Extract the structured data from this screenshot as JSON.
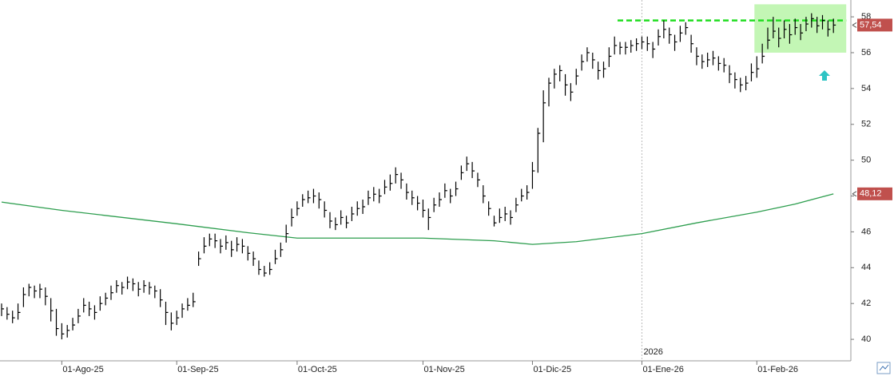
{
  "chart_data": {
    "type": "ohlc",
    "categories": [
      null,
      null,
      null,
      null,
      null,
      null,
      null,
      null,
      null,
      null,
      null,
      "01-Ago-25",
      null,
      null,
      null,
      null,
      null,
      null,
      null,
      null,
      null,
      null,
      null,
      null,
      null,
      null,
      null,
      null,
      null,
      null,
      null,
      null,
      "01-Sep-25",
      null,
      null,
      null,
      null,
      null,
      null,
      null,
      null,
      null,
      null,
      null,
      null,
      null,
      null,
      null,
      null,
      null,
      null,
      null,
      null,
      null,
      "01-Oct-25",
      null,
      null,
      null,
      null,
      null,
      null,
      null,
      null,
      null,
      null,
      null,
      null,
      null,
      null,
      null,
      null,
      null,
      null,
      null,
      null,
      null,
      null,
      "01-Nov-25",
      null,
      null,
      null,
      null,
      null,
      null,
      null,
      null,
      null,
      null,
      null,
      null,
      null,
      null,
      null,
      null,
      null,
      null,
      null,
      "01-Dic-25",
      null,
      null,
      null,
      null,
      null,
      null,
      null,
      null,
      null,
      null,
      null,
      null,
      null,
      null,
      null,
      null,
      null,
      null,
      null,
      "01-Ene-26",
      null,
      null,
      null,
      null,
      null,
      null,
      null,
      null,
      null,
      null,
      null,
      null,
      null,
      null,
      null,
      null,
      null,
      null,
      null,
      null,
      "01-Feb-26",
      null,
      null,
      null,
      null,
      null,
      null,
      null,
      null,
      null,
      null,
      null,
      null,
      null,
      null
    ],
    "price": {
      "color": "#000000",
      "last_label": "57,54",
      "label_color": "#c0504d",
      "high": [
        42.0,
        41.8,
        41.6,
        42.0,
        42.9,
        43.1,
        43.0,
        43.1,
        42.9,
        42.3,
        41.7,
        40.9,
        40.8,
        41.2,
        41.7,
        42.3,
        42.1,
        41.9,
        42.4,
        42.6,
        43.0,
        43.3,
        43.2,
        43.5,
        43.4,
        43.2,
        43.3,
        43.2,
        43.0,
        42.8,
        42.1,
        41.5,
        41.6,
        42.0,
        42.3,
        42.6,
        44.9,
        45.7,
        45.9,
        45.9,
        45.6,
        45.8,
        45.5,
        45.7,
        45.6,
        45.2,
        44.9,
        44.4,
        44.1,
        44.3,
        45.0,
        45.4,
        46.4,
        47.3,
        47.7,
        48.1,
        48.3,
        48.4,
        48.2,
        47.7,
        47.1,
        46.8,
        47.2,
        46.9,
        47.4,
        47.7,
        47.8,
        48.3,
        48.5,
        48.4,
        48.9,
        49.2,
        49.6,
        49.3,
        48.7,
        48.3,
        48.0,
        47.8,
        47.3,
        47.9,
        48.2,
        48.7,
        48.4,
        48.8,
        49.7,
        50.2,
        49.9,
        49.3,
        48.6,
        47.7,
        46.9,
        47.3,
        47.4,
        47.2,
        47.9,
        48.4,
        48.6,
        49.9,
        51.8,
        53.9,
        54.6,
        55.1,
        55.3,
        54.8,
        54.3,
        55.1,
        55.9,
        56.3,
        56.0,
        55.5,
        55.5,
        56.3,
        56.9,
        56.6,
        56.6,
        56.7,
        56.8,
        56.9,
        56.9,
        56.6,
        57.3,
        57.8,
        57.4,
        57.0,
        57.5,
        57.7,
        57.0,
        56.3,
        55.9,
        56.0,
        56.1,
        55.8,
        55.7,
        55.3,
        54.9,
        54.6,
        54.7,
        55.4,
        55.8,
        56.5,
        57.4,
        58.0,
        57.4,
        57.8,
        57.6,
        57.9,
        57.6,
        58.0,
        58.2,
        58.0,
        58.1,
        57.8,
        57.9
      ],
      "low": [
        41.3,
        41.1,
        40.9,
        41.1,
        41.8,
        42.4,
        42.3,
        42.3,
        41.9,
        41.0,
        40.2,
        40.0,
        40.1,
        40.5,
        40.9,
        41.5,
        41.3,
        41.1,
        41.6,
        41.9,
        42.2,
        42.6,
        42.5,
        42.8,
        42.7,
        42.4,
        42.6,
        42.5,
        42.3,
        41.8,
        40.8,
        40.5,
        40.8,
        41.2,
        41.6,
        41.8,
        44.1,
        44.8,
        45.2,
        45.1,
        44.8,
        45.0,
        44.6,
        44.9,
        44.8,
        44.4,
        44.1,
        43.6,
        43.5,
        43.6,
        44.2,
        44.6,
        45.4,
        46.3,
        46.9,
        47.4,
        47.6,
        47.6,
        47.3,
        46.8,
        46.2,
        46.1,
        46.4,
        46.2,
        46.6,
        46.9,
        47.0,
        47.5,
        47.7,
        47.6,
        48.1,
        48.3,
        48.7,
        48.4,
        47.8,
        47.5,
        47.2,
        46.8,
        46.1,
        47.1,
        47.4,
        47.9,
        47.6,
        48.0,
        48.9,
        49.4,
        49.0,
        48.5,
        47.6,
        46.9,
        46.3,
        46.5,
        46.6,
        46.4,
        47.1,
        47.7,
        47.8,
        48.4,
        49.3,
        51.0,
        53.0,
        54.0,
        54.4,
        53.6,
        53.3,
        54.2,
        55.0,
        55.5,
        55.1,
        54.5,
        54.6,
        55.2,
        55.9,
        55.9,
        55.9,
        56.0,
        56.1,
        56.2,
        56.1,
        55.7,
        56.4,
        56.8,
        56.5,
        56.1,
        56.6,
        57.0,
        56.0,
        55.3,
        55.1,
        55.2,
        55.3,
        55.0,
        54.9,
        54.3,
        54.0,
        53.8,
        53.9,
        54.4,
        54.6,
        55.4,
        56.2,
        56.8,
        56.3,
        56.8,
        56.5,
        57.0,
        56.7,
        57.2,
        57.4,
        57.1,
        57.3,
        56.9,
        57.1
      ],
      "close": [
        41.7,
        41.4,
        41.2,
        41.5,
        42.5,
        42.9,
        42.7,
        42.8,
        42.4,
        41.6,
        40.6,
        40.3,
        40.5,
        40.8,
        41.3,
        41.9,
        41.7,
        41.5,
        42.0,
        42.3,
        42.6,
        43.0,
        42.9,
        43.2,
        43.1,
        42.8,
        43.0,
        42.9,
        42.7,
        42.2,
        41.5,
        40.9,
        41.2,
        41.7,
        41.9,
        42.1,
        44.5,
        45.2,
        45.6,
        45.5,
        45.2,
        45.4,
        45.0,
        45.3,
        45.2,
        44.8,
        44.5,
        43.9,
        43.7,
        43.9,
        44.5,
        45.0,
        45.9,
        46.8,
        47.3,
        47.8,
        47.9,
        48.0,
        47.8,
        47.2,
        46.6,
        46.4,
        46.8,
        46.5,
        47.0,
        47.3,
        47.4,
        47.9,
        48.1,
        48.0,
        48.5,
        48.7,
        49.2,
        48.9,
        48.2,
        47.9,
        47.6,
        47.2,
        46.8,
        47.5,
        47.8,
        48.3,
        48.0,
        48.4,
        49.3,
        49.8,
        49.4,
        48.9,
        48.0,
        47.3,
        46.5,
        46.8,
        47.0,
        46.8,
        47.5,
        48.0,
        48.2,
        49.4,
        51.5,
        53.2,
        54.3,
        54.8,
        55.0,
        54.2,
        53.8,
        54.7,
        55.5,
        56.0,
        55.6,
        55.0,
        55.1,
        55.8,
        56.4,
        56.3,
        56.3,
        56.4,
        56.5,
        56.6,
        56.5,
        56.2,
        56.9,
        57.3,
        57.0,
        56.6,
        57.1,
        57.4,
        56.5,
        55.8,
        55.5,
        55.6,
        55.7,
        55.4,
        55.3,
        54.8,
        54.5,
        54.2,
        54.3,
        54.9,
        55.1,
        55.8,
        56.7,
        57.2,
        56.8,
        57.3,
        57.0,
        57.4,
        57.1,
        57.6,
        57.9,
        57.5,
        57.8,
        57.3,
        57.54
      ]
    },
    "moving_average": {
      "color": "#2e9e4f",
      "last_label": "48,12",
      "label_color": "#c0504d",
      "x": [
        0,
        11,
        32,
        45,
        54,
        77,
        90,
        97,
        105,
        117,
        127,
        138,
        145,
        152
      ],
      "values": [
        47.66,
        47.2,
        46.45,
        45.95,
        45.65,
        45.65,
        45.5,
        45.3,
        45.45,
        45.9,
        46.5,
        47.1,
        47.55,
        48.12
      ]
    },
    "year_label": "2026",
    "resistance_level": 57.8,
    "resistance_color": "#22dd22",
    "highlight_range": [
      56.0,
      58.7
    ],
    "highlight_color": "#b8f5a8",
    "ylim": [
      38.8,
      58.94
    ],
    "yticks": [
      40,
      42,
      44,
      46,
      48,
      50,
      52,
      54,
      56,
      58
    ],
    "grid": false
  }
}
